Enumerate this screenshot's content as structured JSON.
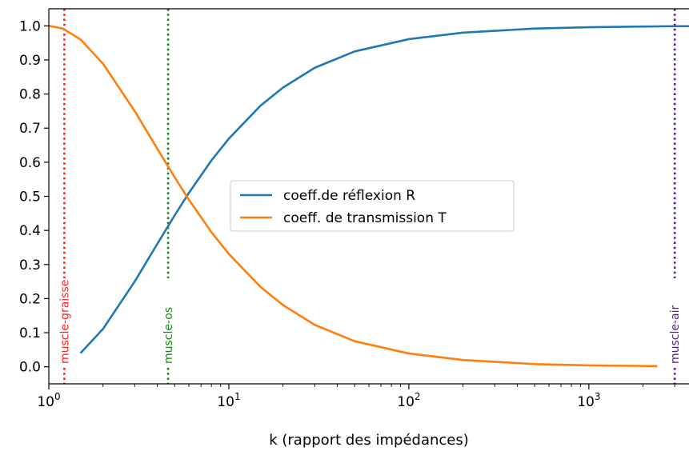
{
  "chart_data": {
    "type": "line",
    "xscale": "log",
    "xlabel": "k (rapport des impédances)",
    "ylabel": "",
    "title": "",
    "xlim": [
      1,
      3600
    ],
    "ylim": [
      -0.05,
      1.05
    ],
    "xticks": [
      {
        "value": 1,
        "base": "10",
        "exp": "0"
      },
      {
        "value": 10,
        "base": "10",
        "exp": "1"
      },
      {
        "value": 100,
        "base": "10",
        "exp": "2"
      },
      {
        "value": 1000,
        "base": "10",
        "exp": "3"
      }
    ],
    "yticks": [
      "0.0",
      "0.1",
      "0.2",
      "0.3",
      "0.4",
      "0.5",
      "0.6",
      "0.7",
      "0.8",
      "0.9",
      "1.0"
    ],
    "legend_position": "center-right",
    "series": [
      {
        "name": "coeff.de réflexion R",
        "color": "#1f77b4",
        "x": [
          1.5,
          2,
          3,
          4,
          5,
          6,
          8,
          10,
          15,
          20,
          30,
          50,
          100,
          200,
          500,
          1000,
          2000,
          3000,
          3600
        ],
        "y": [
          0.04,
          0.111,
          0.25,
          0.36,
          0.444,
          0.51,
          0.605,
          0.669,
          0.766,
          0.819,
          0.877,
          0.925,
          0.961,
          0.98,
          0.992,
          0.996,
          0.998,
          0.999,
          0.999
        ]
      },
      {
        "name": "coeff. de transmission T",
        "color": "#ff7f0e",
        "x": [
          1,
          1.2,
          1.5,
          2,
          3,
          4,
          5,
          6,
          8,
          10,
          15,
          20,
          30,
          50,
          100,
          200,
          500,
          1000,
          2400
        ],
        "y": [
          1.0,
          0.992,
          0.96,
          0.889,
          0.75,
          0.64,
          0.556,
          0.49,
          0.395,
          0.331,
          0.234,
          0.181,
          0.123,
          0.075,
          0.039,
          0.02,
          0.008,
          0.004,
          0.002
        ]
      }
    ],
    "vlines": [
      {
        "x": 1.22,
        "label": "muscle-graisse",
        "color": "#ff1f1f"
      },
      {
        "x": 4.6,
        "label": "muscle-os",
        "color": "#128a12"
      },
      {
        "x": 3000,
        "label": "muscle-air",
        "color": "#5a1a8e"
      }
    ]
  }
}
